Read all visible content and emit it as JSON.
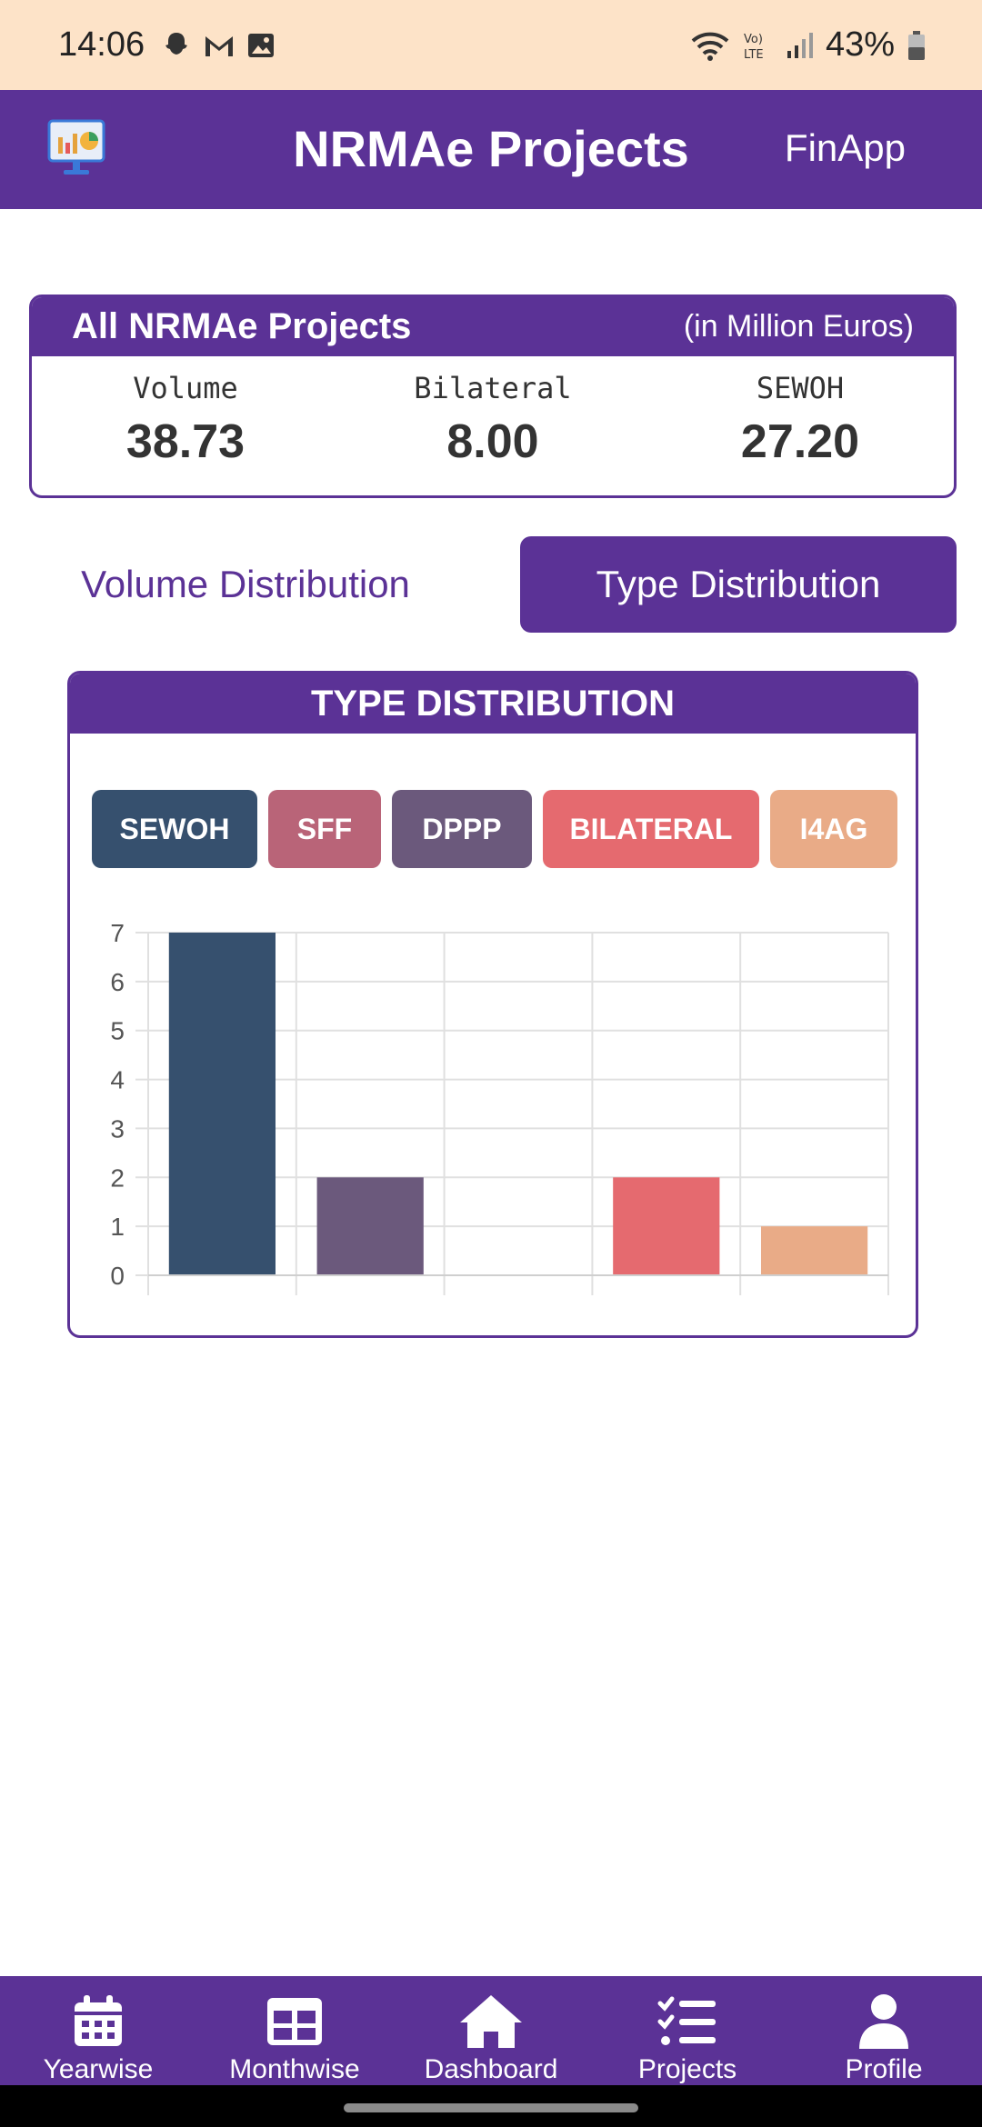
{
  "status_bar": {
    "time": "14:06",
    "battery": "43%"
  },
  "app_bar": {
    "title": "NRMAe Projects",
    "action": "FinApp"
  },
  "summary": {
    "title": "All NRMAe Projects",
    "unit": "(in Million Euros)",
    "stats": [
      {
        "label": "Volume",
        "value": "38.73"
      },
      {
        "label": "Bilateral",
        "value": "8.00"
      },
      {
        "label": "SEWOH",
        "value": "27.20"
      }
    ]
  },
  "tabs": [
    {
      "label": "Volume Distribution",
      "active": false
    },
    {
      "label": "Type Distribution",
      "active": true
    }
  ],
  "chart_card": {
    "title": "TYPE DISTRIBUTION"
  },
  "chart_data": {
    "type": "bar",
    "categories": [
      "SEWOH",
      "SFF",
      "DPPP",
      "BILATERAL",
      "I4AG"
    ],
    "values": [
      7,
      2,
      0,
      2,
      1
    ],
    "colors": [
      "#36506e",
      "#b96478",
      "#6b597c",
      "#e56a6f",
      "#e9ab87"
    ],
    "bar_colors": [
      "#36506e",
      "#6b597c",
      "#6b597c",
      "#e56a6f",
      "#e9ab87"
    ],
    "ylim": [
      0,
      7
    ],
    "yticks": [
      0,
      1,
      2,
      3,
      4,
      5,
      6,
      7
    ],
    "grid": true,
    "legend": "top"
  },
  "nav": [
    {
      "label": "Yearwise",
      "icon": "calendar-icon"
    },
    {
      "label": "Monthwise",
      "icon": "table-grid-icon"
    },
    {
      "label": "Dashboard",
      "icon": "home-icon"
    },
    {
      "label": "Projects",
      "icon": "checklist-icon"
    },
    {
      "label": "Profile",
      "icon": "person-icon"
    }
  ],
  "colors": {
    "primary": "#5b3296",
    "status_bar": "#fde3c8"
  }
}
